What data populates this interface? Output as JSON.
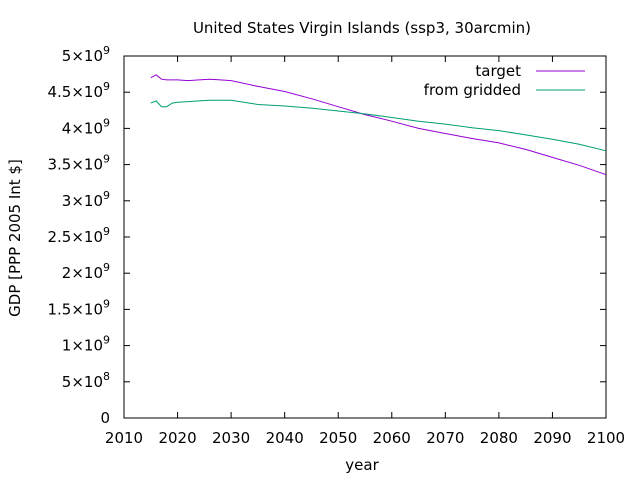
{
  "chart_data": {
    "type": "line",
    "title": "United States Virgin Islands (ssp3, 30arcmin)",
    "xlabel": "year",
    "ylabel": "GDP [PPP 2005 Int $]",
    "xlim": [
      2010,
      2100
    ],
    "ylim": [
      0,
      5000000000
    ],
    "x_ticks": [
      {
        "value": 2010,
        "label": "2010"
      },
      {
        "value": 2020,
        "label": "2020"
      },
      {
        "value": 2030,
        "label": "2030"
      },
      {
        "value": 2040,
        "label": "2040"
      },
      {
        "value": 2050,
        "label": "2050"
      },
      {
        "value": 2060,
        "label": "2060"
      },
      {
        "value": 2070,
        "label": "2070"
      },
      {
        "value": 2080,
        "label": "2080"
      },
      {
        "value": 2090,
        "label": "2090"
      },
      {
        "value": 2100,
        "label": "2100"
      }
    ],
    "y_ticks": [
      {
        "value": 0,
        "mantissa": "0",
        "exponent": ""
      },
      {
        "value": 500000000,
        "mantissa": "5×10",
        "exponent": "8"
      },
      {
        "value": 1000000000,
        "mantissa": "1×10",
        "exponent": "9"
      },
      {
        "value": 1500000000,
        "mantissa": "1.5×10",
        "exponent": "9"
      },
      {
        "value": 2000000000,
        "mantissa": "2×10",
        "exponent": "9"
      },
      {
        "value": 2500000000,
        "mantissa": "2.5×10",
        "exponent": "9"
      },
      {
        "value": 3000000000,
        "mantissa": "3×10",
        "exponent": "9"
      },
      {
        "value": 3500000000,
        "mantissa": "3.5×10",
        "exponent": "9"
      },
      {
        "value": 4000000000,
        "mantissa": "4×10",
        "exponent": "9"
      },
      {
        "value": 4500000000,
        "mantissa": "4.5×10",
        "exponent": "9"
      },
      {
        "value": 5000000000,
        "mantissa": "5×10",
        "exponent": "9"
      }
    ],
    "legend_position": "top-right",
    "grid": false,
    "series": [
      {
        "name": "target",
        "color": "#9400d3",
        "x": [
          2015,
          2016,
          2017,
          2018,
          2020,
          2022,
          2024,
          2026,
          2028,
          2030,
          2035,
          2040,
          2045,
          2050,
          2055,
          2060,
          2065,
          2070,
          2075,
          2080,
          2085,
          2090,
          2095,
          2100
        ],
        "values": [
          4700000000,
          4740000000,
          4680000000,
          4670000000,
          4670000000,
          4660000000,
          4670000000,
          4680000000,
          4670000000,
          4660000000,
          4580000000,
          4510000000,
          4410000000,
          4300000000,
          4190000000,
          4100000000,
          4000000000,
          3930000000,
          3860000000,
          3800000000,
          3710000000,
          3600000000,
          3490000000,
          3360000000
        ]
      },
      {
        "name": "from gridded",
        "color": "#009e73",
        "x": [
          2015,
          2016,
          2017,
          2018,
          2019,
          2020,
          2022,
          2024,
          2026,
          2028,
          2030,
          2035,
          2040,
          2045,
          2050,
          2055,
          2060,
          2065,
          2070,
          2075,
          2080,
          2085,
          2090,
          2095,
          2100
        ],
        "values": [
          4350000000,
          4380000000,
          4300000000,
          4300000000,
          4350000000,
          4360000000,
          4370000000,
          4380000000,
          4390000000,
          4390000000,
          4390000000,
          4330000000,
          4310000000,
          4280000000,
          4240000000,
          4200000000,
          4150000000,
          4100000000,
          4060000000,
          4010000000,
          3970000000,
          3910000000,
          3850000000,
          3780000000,
          3690000000
        ]
      }
    ]
  }
}
